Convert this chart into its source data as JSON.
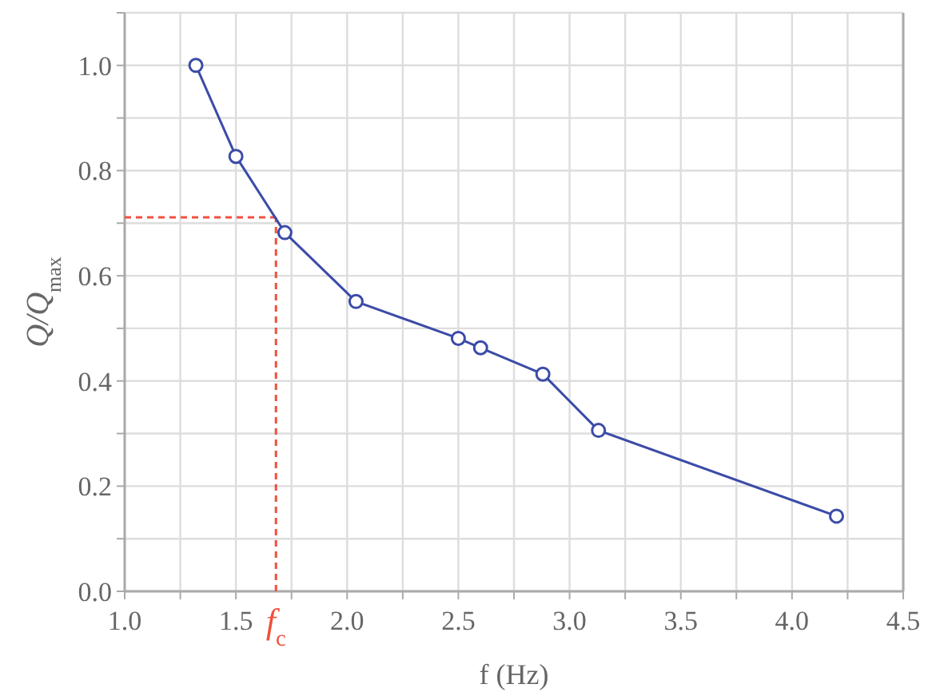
{
  "chart_data": {
    "type": "line",
    "xlabel": "f (Hz)",
    "ylabel": "Q/Q$_{max}$",
    "x": [
      1.32,
      1.5,
      1.72,
      2.04,
      2.5,
      2.6,
      2.88,
      3.13,
      4.2
    ],
    "series": [
      {
        "color": "#3b4ba8",
        "values": [
          1.0,
          0.827,
          0.682,
          0.551,
          0.481,
          0.463,
          0.413,
          0.306,
          0.143
        ]
      }
    ],
    "xlim": [
      1.0,
      4.5
    ],
    "xticks": [
      {
        "value": 1.0,
        "label": "1.0"
      },
      {
        "value": 1.25,
        "label": null
      },
      {
        "value": 1.5,
        "label": "1.5"
      },
      {
        "value": 1.75,
        "label": null
      },
      {
        "value": 2.0,
        "label": "2.0"
      },
      {
        "value": 2.25,
        "label": null
      },
      {
        "value": 2.5,
        "label": "2.5"
      },
      {
        "value": 2.75,
        "label": null
      },
      {
        "value": 3.0,
        "label": "3.0"
      },
      {
        "value": 3.25,
        "label": null
      },
      {
        "value": 3.5,
        "label": "3.5"
      },
      {
        "value": 3.75,
        "label": null
      },
      {
        "value": 4.0,
        "label": "4.0"
      },
      {
        "value": 4.25,
        "label": null
      },
      {
        "value": 4.5,
        "label": "4.5"
      }
    ],
    "ylim": [
      0,
      1.1
    ],
    "yticks": [
      {
        "value": 0,
        "label": "0.0"
      },
      {
        "value": 0.1,
        "label": null
      },
      {
        "value": 0.2,
        "label": "0.2"
      },
      {
        "value": 0.3,
        "label": null
      },
      {
        "value": 0.4,
        "label": "0.4"
      },
      {
        "value": 0.5,
        "label": null
      },
      {
        "value": 0.6,
        "label": "0.6"
      },
      {
        "value": 0.7,
        "label": null
      },
      {
        "value": 0.8,
        "label": "0.8"
      },
      {
        "value": 0.9,
        "label": null
      },
      {
        "value": 1.0,
        "label": "1.0"
      },
      {
        "value": 1.1,
        "label": null
      }
    ],
    "grid": true,
    "marker": "circle",
    "line_style": "solid",
    "ref_lines": [
      {
        "axis": "x",
        "value": 1.68,
        "label": "f$_{c}$",
        "color": "#f0503c",
        "line_style": "dashed"
      },
      {
        "axis": "y",
        "value": 0.711,
        "label": null,
        "color": "#f0503c",
        "line_style": "dashed"
      }
    ]
  }
}
